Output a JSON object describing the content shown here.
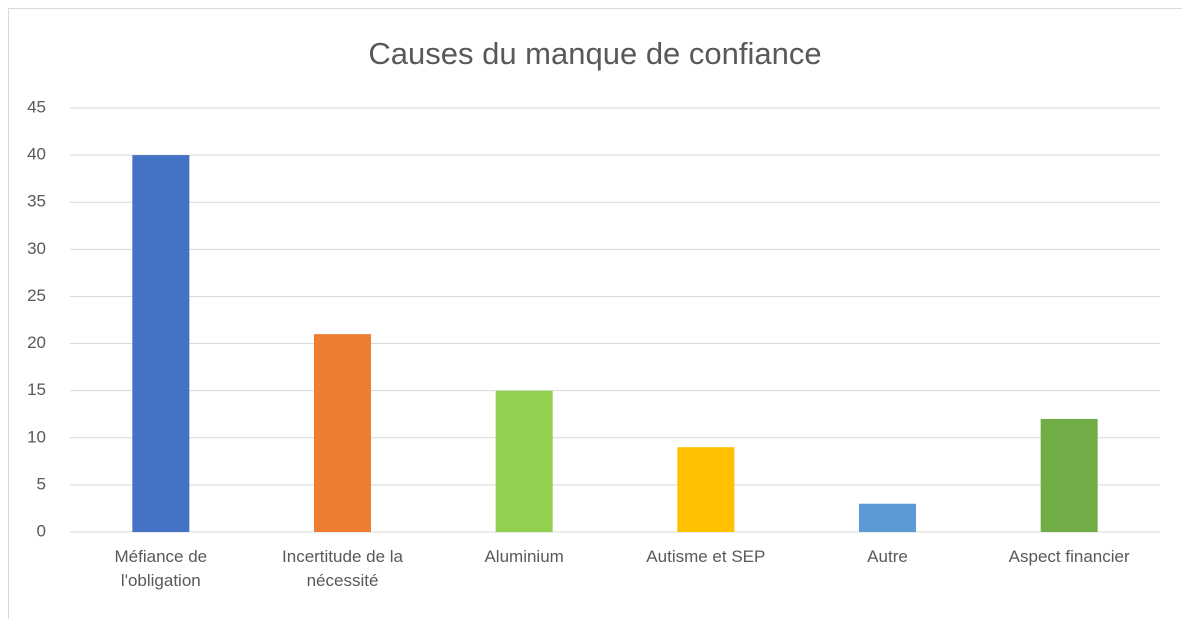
{
  "chart_data": {
    "type": "bar",
    "title": "Causes du manque de confiance",
    "categories": [
      "Méfiance de l'obligation",
      "Incertitude de la nécessité",
      "Aluminium",
      "Autisme et SEP",
      "Autre",
      "Aspect financier"
    ],
    "values": [
      40,
      21,
      15,
      9,
      3,
      12
    ],
    "colors": [
      "#4472c4",
      "#ed7d31",
      "#92d050",
      "#ffc000",
      "#5b9bd5",
      "#70ad47"
    ],
    "ylim": [
      0,
      45
    ],
    "yticks": [
      0,
      5,
      10,
      15,
      20,
      25,
      30,
      35,
      40,
      45
    ],
    "grid": true
  }
}
